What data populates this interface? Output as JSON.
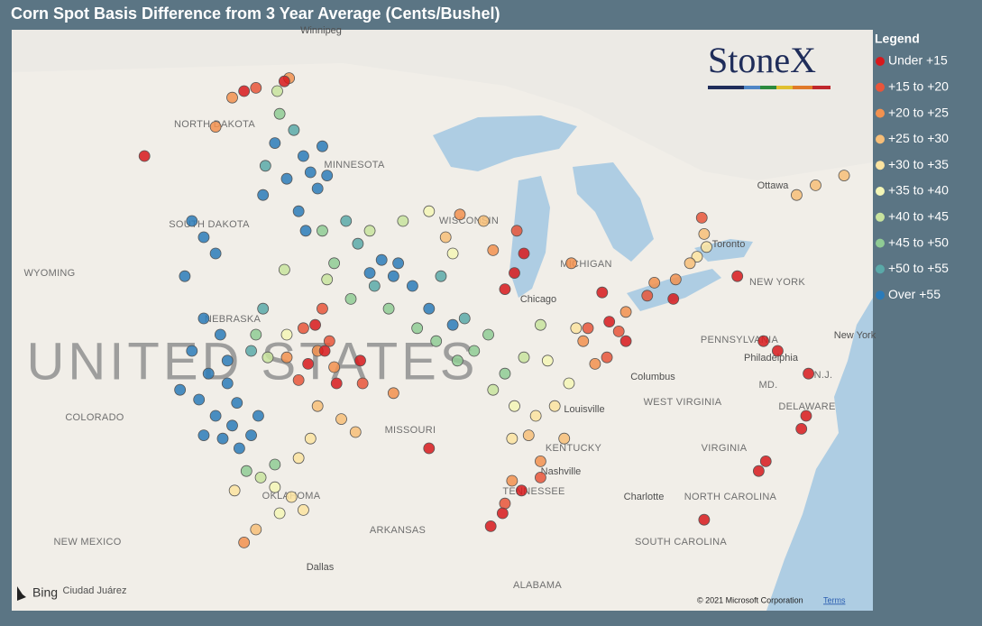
{
  "title": "Corn Spot Basis Difference from 3 Year Average (Cents/Bushel)",
  "legend": {
    "title": "Legend",
    "items": [
      {
        "label": "Under +15",
        "color": "#d7191c"
      },
      {
        "label": "+15 to +20",
        "color": "#e8553a"
      },
      {
        "label": "+20 to +25",
        "color": "#f2914f"
      },
      {
        "label": "+25 to +30",
        "color": "#f7be78"
      },
      {
        "label": "+30 to +35",
        "color": "#fbe3a0"
      },
      {
        "label": "+35 to +40",
        "color": "#f4f6b6"
      },
      {
        "label": "+40 to +45",
        "color": "#c8e39e"
      },
      {
        "label": "+45 to +50",
        "color": "#8fcb94"
      },
      {
        "label": "+50 to +55",
        "color": "#5aa9a8"
      },
      {
        "label": "Over +55",
        "color": "#2b7bb9"
      }
    ]
  },
  "logo": "StoneX",
  "map_labels": [
    "Winnipeg",
    "NORTH DAKOTA",
    "MINNESOTA",
    "SOUTH DAKOTA",
    "WYOMING",
    "NEBRASKA",
    "UNITED STATES",
    "COLORADO",
    "MISSOURI",
    "OKLAHOMA",
    "ARKANSAS",
    "NEW MEXICO",
    "Dallas",
    "Ciudad Juárez",
    "ALABAMA",
    "TENNESSEE",
    "Nashville",
    "KENTUCKY",
    "Louisville",
    "Columbus",
    "WEST VIRGINIA",
    "VIRGINIA",
    "NORTH CAROLINA",
    "Charlotte",
    "SOUTH CAROLINA",
    "DELAWARE",
    "MD.",
    "N.J.",
    "Philadelphia",
    "PENNSYLVANIA",
    "NEW YORK",
    "New York",
    "Toronto",
    "Ottawa",
    "Chicago",
    "WISCONSIN",
    "MICHIGAN"
  ],
  "attribution": {
    "provider": "Bing",
    "copyright": "© 2021 Microsoft Corporation",
    "terms": "Terms"
  },
  "points": [
    [
      -101.5,
      44.5,
      9
    ],
    [
      -101,
      44,
      9
    ],
    [
      -100.5,
      43.5,
      9
    ],
    [
      -101.8,
      42.8,
      9
    ],
    [
      -101,
      41.5,
      9
    ],
    [
      -100.3,
      41,
      9
    ],
    [
      -101.5,
      40.5,
      9
    ],
    [
      -100.8,
      39.8,
      9
    ],
    [
      -100,
      39.5,
      9
    ],
    [
      -101.2,
      39,
      9
    ],
    [
      -100.5,
      38.5,
      9
    ],
    [
      -99.8,
      38.2,
      9
    ],
    [
      -100.2,
      37.8,
      9
    ],
    [
      -99.5,
      37.5,
      9
    ],
    [
      -101,
      37.9,
      9
    ],
    [
      -102,
      39.3,
      9
    ],
    [
      -100,
      40.2,
      9
    ],
    [
      -99.6,
      38.9,
      9
    ],
    [
      -98.7,
      38.5,
      9
    ],
    [
      -99,
      37.9,
      9
    ],
    [
      -96.8,
      46.5,
      9
    ],
    [
      -96.5,
      46,
      9
    ],
    [
      -96.2,
      45.5,
      9
    ],
    [
      -97.5,
      45.8,
      9
    ],
    [
      -98.5,
      45.3,
      9
    ],
    [
      -97,
      44.8,
      9
    ],
    [
      -96.7,
      44.2,
      9
    ],
    [
      -95.8,
      45.9,
      9
    ],
    [
      -98,
      46.9,
      9
    ],
    [
      -96,
      46.8,
      9
    ],
    [
      -93.5,
      43.3,
      9
    ],
    [
      -93,
      42.8,
      9
    ],
    [
      -92.2,
      42.5,
      9
    ],
    [
      -91.5,
      41.8,
      9
    ],
    [
      -90.5,
      41.3,
      9
    ],
    [
      -94,
      42.9,
      9
    ],
    [
      -92.8,
      43.2,
      9
    ],
    [
      -94.5,
      43.8,
      8
    ],
    [
      -95,
      44.5,
      8
    ],
    [
      -93.8,
      42.5,
      8
    ],
    [
      -91,
      42.8,
      8
    ],
    [
      -98.4,
      46.2,
      8
    ],
    [
      -97.2,
      47.3,
      8
    ],
    [
      -99,
      40.5,
      8
    ],
    [
      -98.5,
      41.8,
      8
    ],
    [
      -90,
      41.5,
      8
    ],
    [
      -95.5,
      43.2,
      7
    ],
    [
      -94.8,
      42.1,
      7
    ],
    [
      -93.2,
      41.8,
      7
    ],
    [
      -92,
      41.2,
      7
    ],
    [
      -91.2,
      40.8,
      7
    ],
    [
      -89.6,
      40.5,
      7
    ],
    [
      -89,
      41,
      7
    ],
    [
      -90.3,
      40.2,
      7
    ],
    [
      -96,
      44.2,
      7
    ],
    [
      -97.8,
      47.8,
      7
    ],
    [
      -98.8,
      41,
      7
    ],
    [
      -99.2,
      36.8,
      7
    ],
    [
      -98,
      37,
      7
    ],
    [
      -88.3,
      39.8,
      7
    ],
    [
      -94,
      44.2,
      6
    ],
    [
      -95.8,
      42.7,
      6
    ],
    [
      -92.6,
      44.5,
      6
    ],
    [
      -88.8,
      39.3,
      6
    ],
    [
      -87.5,
      40.3,
      6
    ],
    [
      -86.8,
      41.3,
      6
    ],
    [
      -98.3,
      40.3,
      6
    ],
    [
      -97.6,
      43,
      6
    ],
    [
      -97.9,
      48.5,
      6
    ],
    [
      -98.6,
      36.6,
      6
    ],
    [
      -97.5,
      41,
      5
    ],
    [
      -90.5,
      43.5,
      5
    ],
    [
      -87.9,
      38.8,
      5
    ],
    [
      -86.5,
      40.2,
      5
    ],
    [
      -85.6,
      39.5,
      5
    ],
    [
      -98,
      36.3,
      5
    ],
    [
      -97.8,
      35.5,
      5
    ],
    [
      -91.5,
      44.8,
      5
    ],
    [
      -97.3,
      36,
      4
    ],
    [
      -96.8,
      35.6,
      4
    ],
    [
      -96.5,
      37.8,
      4
    ],
    [
      -86.2,
      38.8,
      4
    ],
    [
      -87,
      38.5,
      4
    ],
    [
      -85.3,
      41.2,
      4
    ],
    [
      -80.2,
      43.4,
      4
    ],
    [
      -79.8,
      43.7,
      4
    ],
    [
      -99.7,
      36.2,
      4
    ],
    [
      -88,
      37.8,
      4
    ],
    [
      -97,
      37.2,
      4
    ],
    [
      -96.2,
      38.8,
      3
    ],
    [
      -95.2,
      38.4,
      3
    ],
    [
      -94.6,
      38,
      3
    ],
    [
      -90.8,
      44,
      3
    ],
    [
      -89.2,
      44.5,
      3
    ],
    [
      -87.3,
      37.9,
      3
    ],
    [
      -80.5,
      43.2,
      3
    ],
    [
      -79.9,
      44.1,
      3
    ],
    [
      -98.8,
      35,
      3
    ],
    [
      -85.8,
      37.8,
      3
    ],
    [
      -76,
      45.3,
      3
    ],
    [
      -75.2,
      45.6,
      3
    ],
    [
      -74,
      45.9,
      3
    ],
    [
      -97.5,
      40.3,
      2
    ],
    [
      -96.2,
      40.5,
      2
    ],
    [
      -95.5,
      40,
      2
    ],
    [
      -93,
      39.2,
      2
    ],
    [
      -90.2,
      44.7,
      2
    ],
    [
      -88.8,
      43.6,
      2
    ],
    [
      -86.8,
      37.1,
      2
    ],
    [
      -85,
      40.8,
      2
    ],
    [
      -84.5,
      40.1,
      2
    ],
    [
      -83.2,
      41.7,
      2
    ],
    [
      -81.1,
      42.7,
      2
    ],
    [
      -82,
      42.6,
      2
    ],
    [
      -99.3,
      34.6,
      2
    ],
    [
      -99.8,
      48.3,
      2
    ],
    [
      -100.5,
      47.4,
      2
    ],
    [
      -97.4,
      48.9,
      2
    ],
    [
      -88,
      36.5,
      2
    ],
    [
      -85.5,
      43.2,
      2
    ],
    [
      -96.8,
      41.2,
      1
    ],
    [
      -96,
      41.8,
      1
    ],
    [
      -95.7,
      40.8,
      1
    ],
    [
      -97,
      39.6,
      1
    ],
    [
      -94.3,
      39.5,
      1
    ],
    [
      -84.8,
      41.2,
      1
    ],
    [
      -83.5,
      41.1,
      1
    ],
    [
      -84,
      40.3,
      1
    ],
    [
      -82.3,
      42.2,
      1
    ],
    [
      -87.8,
      44.2,
      1
    ],
    [
      -88.3,
      35.8,
      1
    ],
    [
      -86.8,
      36.6,
      1
    ],
    [
      -80,
      44.6,
      1
    ],
    [
      -98.8,
      48.6,
      1
    ],
    [
      -96.3,
      41.3,
      0
    ],
    [
      -95.9,
      40.5,
      0
    ],
    [
      -96.6,
      40.1,
      0
    ],
    [
      -95.4,
      39.5,
      0
    ],
    [
      -94.4,
      40.2,
      0
    ],
    [
      -87.5,
      43.5,
      0
    ],
    [
      -87.9,
      42.9,
      0
    ],
    [
      -88.3,
      42.4,
      0
    ],
    [
      -83.9,
      41.4,
      0
    ],
    [
      -83.2,
      40.8,
      0
    ],
    [
      -84.2,
      42.3,
      0
    ],
    [
      -81.2,
      42.1,
      0
    ],
    [
      -77.4,
      40.8,
      0
    ],
    [
      -76.8,
      40.5,
      0
    ],
    [
      -75.5,
      39.8,
      0
    ],
    [
      -75.6,
      38.5,
      0
    ],
    [
      -75.8,
      38.1,
      0
    ],
    [
      -77.3,
      37.1,
      0
    ],
    [
      -77.6,
      36.8,
      0
    ],
    [
      -88.4,
      35.5,
      0
    ],
    [
      -88.9,
      35.1,
      0
    ],
    [
      -87.6,
      36.2,
      0
    ],
    [
      -79.9,
      35.3,
      0
    ],
    [
      -97.6,
      48.8,
      0
    ],
    [
      -99.3,
      48.5,
      0
    ],
    [
      -103.5,
      46.5,
      0
    ],
    [
      -91.5,
      37.5,
      0
    ],
    [
      -78.5,
      42.8,
      0
    ]
  ]
}
